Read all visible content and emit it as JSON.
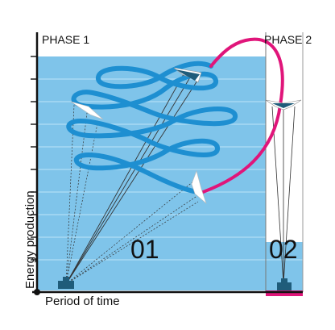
{
  "diagram": {
    "phase1_label": "PHASE 1",
    "phase2_label": "PHASE 2",
    "phase1_number": "01",
    "phase2_number": "02",
    "y_axis_label": "Energy production",
    "x_axis_label": "Period of time"
  },
  "colors": {
    "energy_band": "#7fc4ea",
    "band_line": "#a9daf3",
    "flight_path": "#1e8fd1",
    "retraction_path": "#e0157a",
    "axis": "#111111",
    "divider": "#666666",
    "station": "#1f5c7a",
    "tether": "#333333",
    "kite": "#ffffff"
  },
  "icons": [
    "kite-icon",
    "ground-station-icon"
  ]
}
